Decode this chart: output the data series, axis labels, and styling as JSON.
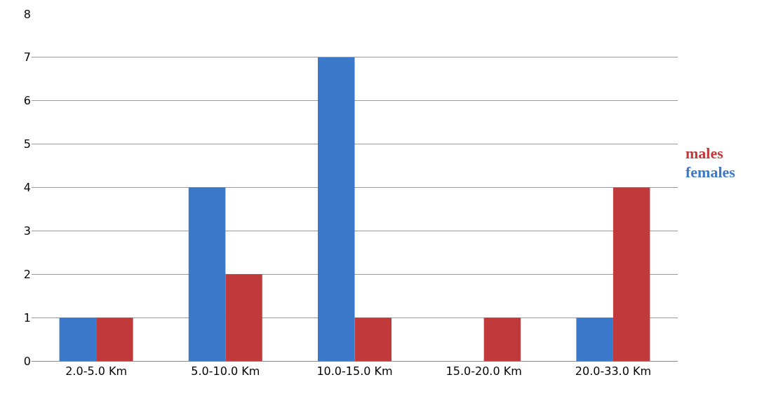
{
  "chart_data": {
    "type": "bar",
    "categories": [
      "2.0-5.0 Km",
      "5.0-10.0 Km",
      "10.0-15.0 Km",
      "15.0-20.0 Km",
      "20.0-33.0 Km"
    ],
    "series": [
      {
        "name": "females",
        "color": "#3a78c9",
        "values": [
          1,
          4,
          7,
          0,
          1
        ]
      },
      {
        "name": "males",
        "color": "#c0393b",
        "values": [
          1,
          2,
          1,
          1,
          4
        ]
      }
    ],
    "ylim": [
      0,
      8
    ],
    "yticks": [
      0,
      1,
      2,
      3,
      4,
      5,
      6,
      7,
      8
    ],
    "grid": "y",
    "legend": "right"
  }
}
